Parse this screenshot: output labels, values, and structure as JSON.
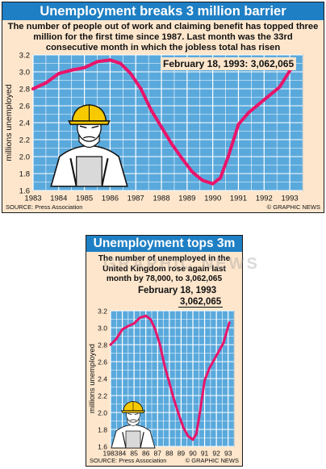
{
  "colors": {
    "title_bar": "#1f7fc4",
    "plot_bg": "#5aa9dc",
    "grid": "#ffffff",
    "line": "#e8156a",
    "panel_bg": "#fde6cc"
  },
  "top": {
    "title": "Unemployment breaks 3 million barrier",
    "subtitle": "The number of people out of work and claiming benefit has topped three million for the first time since 1987. Last month was the 33rd consecutive month in which the jobless total has risen",
    "annotation": "February 18, 1993: 3,062,065",
    "source": "SOURCE: Press Association",
    "credit": "© GRAPHIC NEWS"
  },
  "bottom": {
    "title": "Unemployment tops 3m",
    "subtitle": "The number of unemployed in the United Kingdom rose again last month by 78,000, to 3,062,065",
    "annotation_date": "February 18, 1993",
    "annotation_value": "3,062,065",
    "source": "SOURCE: Press Association",
    "credit": "© GRAPHIC NEWS"
  },
  "watermark": "GRAPHIC NEWS",
  "chart_data": [
    {
      "type": "line",
      "title": "Unemployment breaks 3 million barrier",
      "ylabel": "millions unemployed",
      "xlabel": "",
      "xlim": [
        1983,
        1993.5
      ],
      "ylim": [
        1.6,
        3.2
      ],
      "x_ticks": [
        "1983",
        "1984",
        "1985",
        "1986",
        "1987",
        "1988",
        "1989",
        "1990",
        "1991",
        "1992",
        "1993"
      ],
      "y_ticks": [
        "1.6",
        "1.8",
        "2.0",
        "2.2",
        "2.4",
        "2.6",
        "2.8",
        "3.0",
        "3.2"
      ],
      "grid": true,
      "series": [
        {
          "x": [
            1983.0,
            1983.5,
            1984.0,
            1984.5,
            1985.0,
            1985.5,
            1986.0,
            1986.4,
            1986.8,
            1987.2,
            1987.6,
            1988.0,
            1988.4,
            1988.8,
            1989.2,
            1989.6,
            1990.0,
            1990.3,
            1990.6,
            1991.0,
            1991.4,
            1991.8,
            1992.2,
            1992.6,
            1993.1
          ],
          "y": [
            2.8,
            2.87,
            2.98,
            3.02,
            3.05,
            3.12,
            3.14,
            3.1,
            2.98,
            2.8,
            2.55,
            2.35,
            2.15,
            1.98,
            1.82,
            1.72,
            1.68,
            1.75,
            2.0,
            2.38,
            2.52,
            2.62,
            2.72,
            2.82,
            3.06
          ]
        }
      ]
    },
    {
      "type": "line",
      "title": "Unemployment tops 3m",
      "ylabel": "millions unemployed",
      "xlabel": "",
      "xlim": [
        1983,
        1993.5
      ],
      "ylim": [
        1.6,
        3.2
      ],
      "x_ticks": [
        "1983",
        "84",
        "85",
        "86",
        "87",
        "88",
        "89",
        "90",
        "91",
        "92",
        "93"
      ],
      "y_ticks": [
        "1.6",
        "1.8",
        "2.0",
        "2.2",
        "2.4",
        "2.6",
        "2.8",
        "3.0",
        "3.2"
      ],
      "grid": true,
      "series": [
        {
          "x": [
            1983.0,
            1983.5,
            1984.0,
            1984.5,
            1985.0,
            1985.5,
            1986.0,
            1986.4,
            1986.8,
            1987.2,
            1987.6,
            1988.0,
            1988.4,
            1988.8,
            1989.2,
            1989.6,
            1990.0,
            1990.3,
            1990.6,
            1991.0,
            1991.4,
            1991.8,
            1992.2,
            1992.6,
            1993.1
          ],
          "y": [
            2.8,
            2.87,
            2.98,
            3.02,
            3.05,
            3.12,
            3.14,
            3.1,
            2.98,
            2.8,
            2.55,
            2.35,
            2.15,
            1.98,
            1.82,
            1.72,
            1.68,
            1.75,
            2.0,
            2.38,
            2.52,
            2.62,
            2.72,
            2.82,
            3.06
          ]
        }
      ]
    }
  ]
}
